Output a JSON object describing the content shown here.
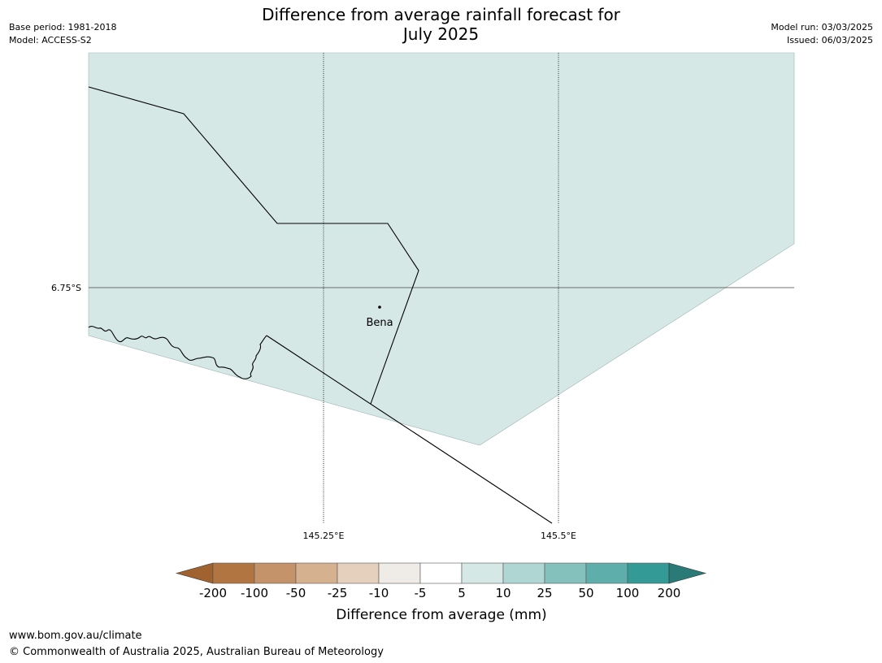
{
  "header": {
    "title_line1": "Difference from average rainfall forecast for",
    "title_line2": "July 2025",
    "base_period": "Base period: 1981-2018",
    "model": "Model: ACCESS-S2",
    "model_run": "Model run: 03/03/2025",
    "issued": "Issued: 06/03/2025"
  },
  "map": {
    "place_label": "Bena",
    "lat_label": "6.75°S",
    "lon_labels": [
      "145.25°E",
      "145.5°E"
    ],
    "fill_color": "#d5e8e6",
    "fill_category": "5 to 10"
  },
  "colorbar": {
    "label": "Difference from average (mm)",
    "ticks": [
      "-200",
      "-100",
      "-50",
      "-25",
      "-10",
      "-5",
      "5",
      "10",
      "25",
      "50",
      "100",
      "200"
    ],
    "colors": [
      "#a0622f",
      "#b07540",
      "#c4936a",
      "#d5b190",
      "#e5d0bd",
      "#efebe6",
      "#ffffff",
      "#d5e8e6",
      "#b0d6d4",
      "#84c0bc",
      "#5eaeab",
      "#339a96",
      "#2a7a78"
    ]
  },
  "footer": {
    "url": "www.bom.gov.au/climate",
    "copyright": "© Commonwealth of Australia 2025, Australian Bureau of Meteorology"
  }
}
